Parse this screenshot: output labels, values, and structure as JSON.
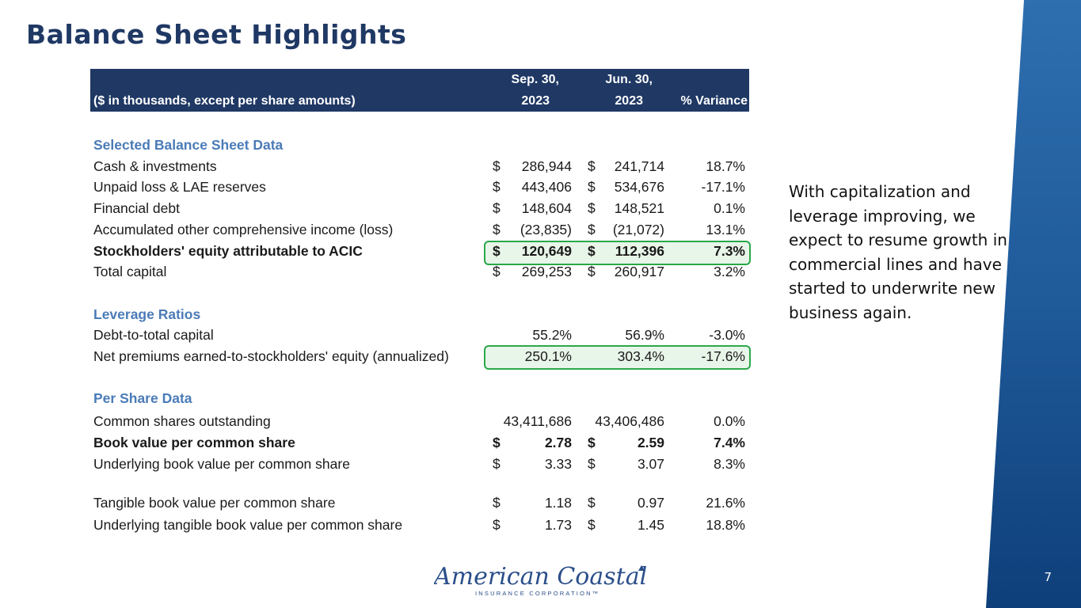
{
  "title": "Balance Sheet Highlights",
  "table": {
    "header": {
      "label": "($ in thousands, except per share amounts)",
      "col1_top": "Sep. 30,",
      "col1_bottom": "2023",
      "col2_top": "Jun. 30,",
      "col2_bottom": "2023",
      "col3": "% Variance"
    },
    "rows": [
      {
        "label": "Selected Balance Sheet Data",
        "type": "section"
      },
      {
        "label": "Cash & investments",
        "d1": "$",
        "v1": "286,944",
        "d2": "$",
        "v2": "241,714",
        "pv": "18.7%"
      },
      {
        "label": "Unpaid loss & LAE reserves",
        "d1": "$",
        "v1": "443,406",
        "d2": "$",
        "v2": "534,676",
        "pv": "-17.1%"
      },
      {
        "label": "Financial debt",
        "d1": "$",
        "v1": "148,604",
        "d2": "$",
        "v2": "148,521",
        "pv": "0.1%"
      },
      {
        "label": "Accumulated other comprehensive income (loss)",
        "d1": "$",
        "v1": "(23,835)",
        "d2": "$",
        "v2": "(21,072)",
        "pv": "13.1%"
      },
      {
        "label": "Stockholders' equity attributable to ACIC",
        "d1": "$",
        "v1": "120,649",
        "d2": "$",
        "v2": "112,396",
        "pv": "7.3%",
        "bold": true
      },
      {
        "label": "Total capital",
        "d1": "$",
        "v1": "269,253",
        "d2": "$",
        "v2": "260,917",
        "pv": "3.2%"
      },
      {
        "label": "Leverage Ratios",
        "type": "section"
      },
      {
        "label": "Debt-to-total capital",
        "d1": "",
        "v1": "55.2%",
        "d2": "",
        "v2": "56.9%",
        "pv": "-3.0%"
      },
      {
        "label": "Net premiums earned-to-stockholders' equity (annualized)",
        "d1": "",
        "v1": "250.1%",
        "d2": "",
        "v2": "303.4%",
        "pv": "-17.6%"
      },
      {
        "label": "Per Share Data",
        "type": "section"
      },
      {
        "label": "Common shares outstanding",
        "d1": "",
        "v1": "43,411,686",
        "d2": "",
        "v2": "43,406,486",
        "pv": "0.0%"
      },
      {
        "label": "Book value per common share",
        "d1": "$",
        "v1": "2.78",
        "d2": "$",
        "v2": "2.59",
        "pv": "7.4%",
        "bold": true
      },
      {
        "label": "Underlying book value per common share",
        "d1": "$",
        "v1": "3.33",
        "d2": "$",
        "v2": "3.07",
        "pv": "8.3%"
      },
      {
        "label": "Tangible book value per common share",
        "d1": "$",
        "v1": "1.18",
        "d2": "$",
        "v2": "0.97",
        "pv": "21.6%"
      },
      {
        "label": "Underlying tangible book value per common share",
        "d1": "$",
        "v1": "1.73",
        "d2": "$",
        "v2": "1.45",
        "pv": "18.8%"
      }
    ]
  },
  "callout": "With capitalization and leverage improving, we expect to resume growth in commercial lines and have started to underwrite new business again.",
  "logo": {
    "name": "American Coastal",
    "sub": "INSURANCE CORPORATION"
  },
  "page_number": "7",
  "colors": {
    "navy": "#1f3864",
    "section_blue": "#4a7bb7",
    "highlight_green": "#2aa84a"
  }
}
